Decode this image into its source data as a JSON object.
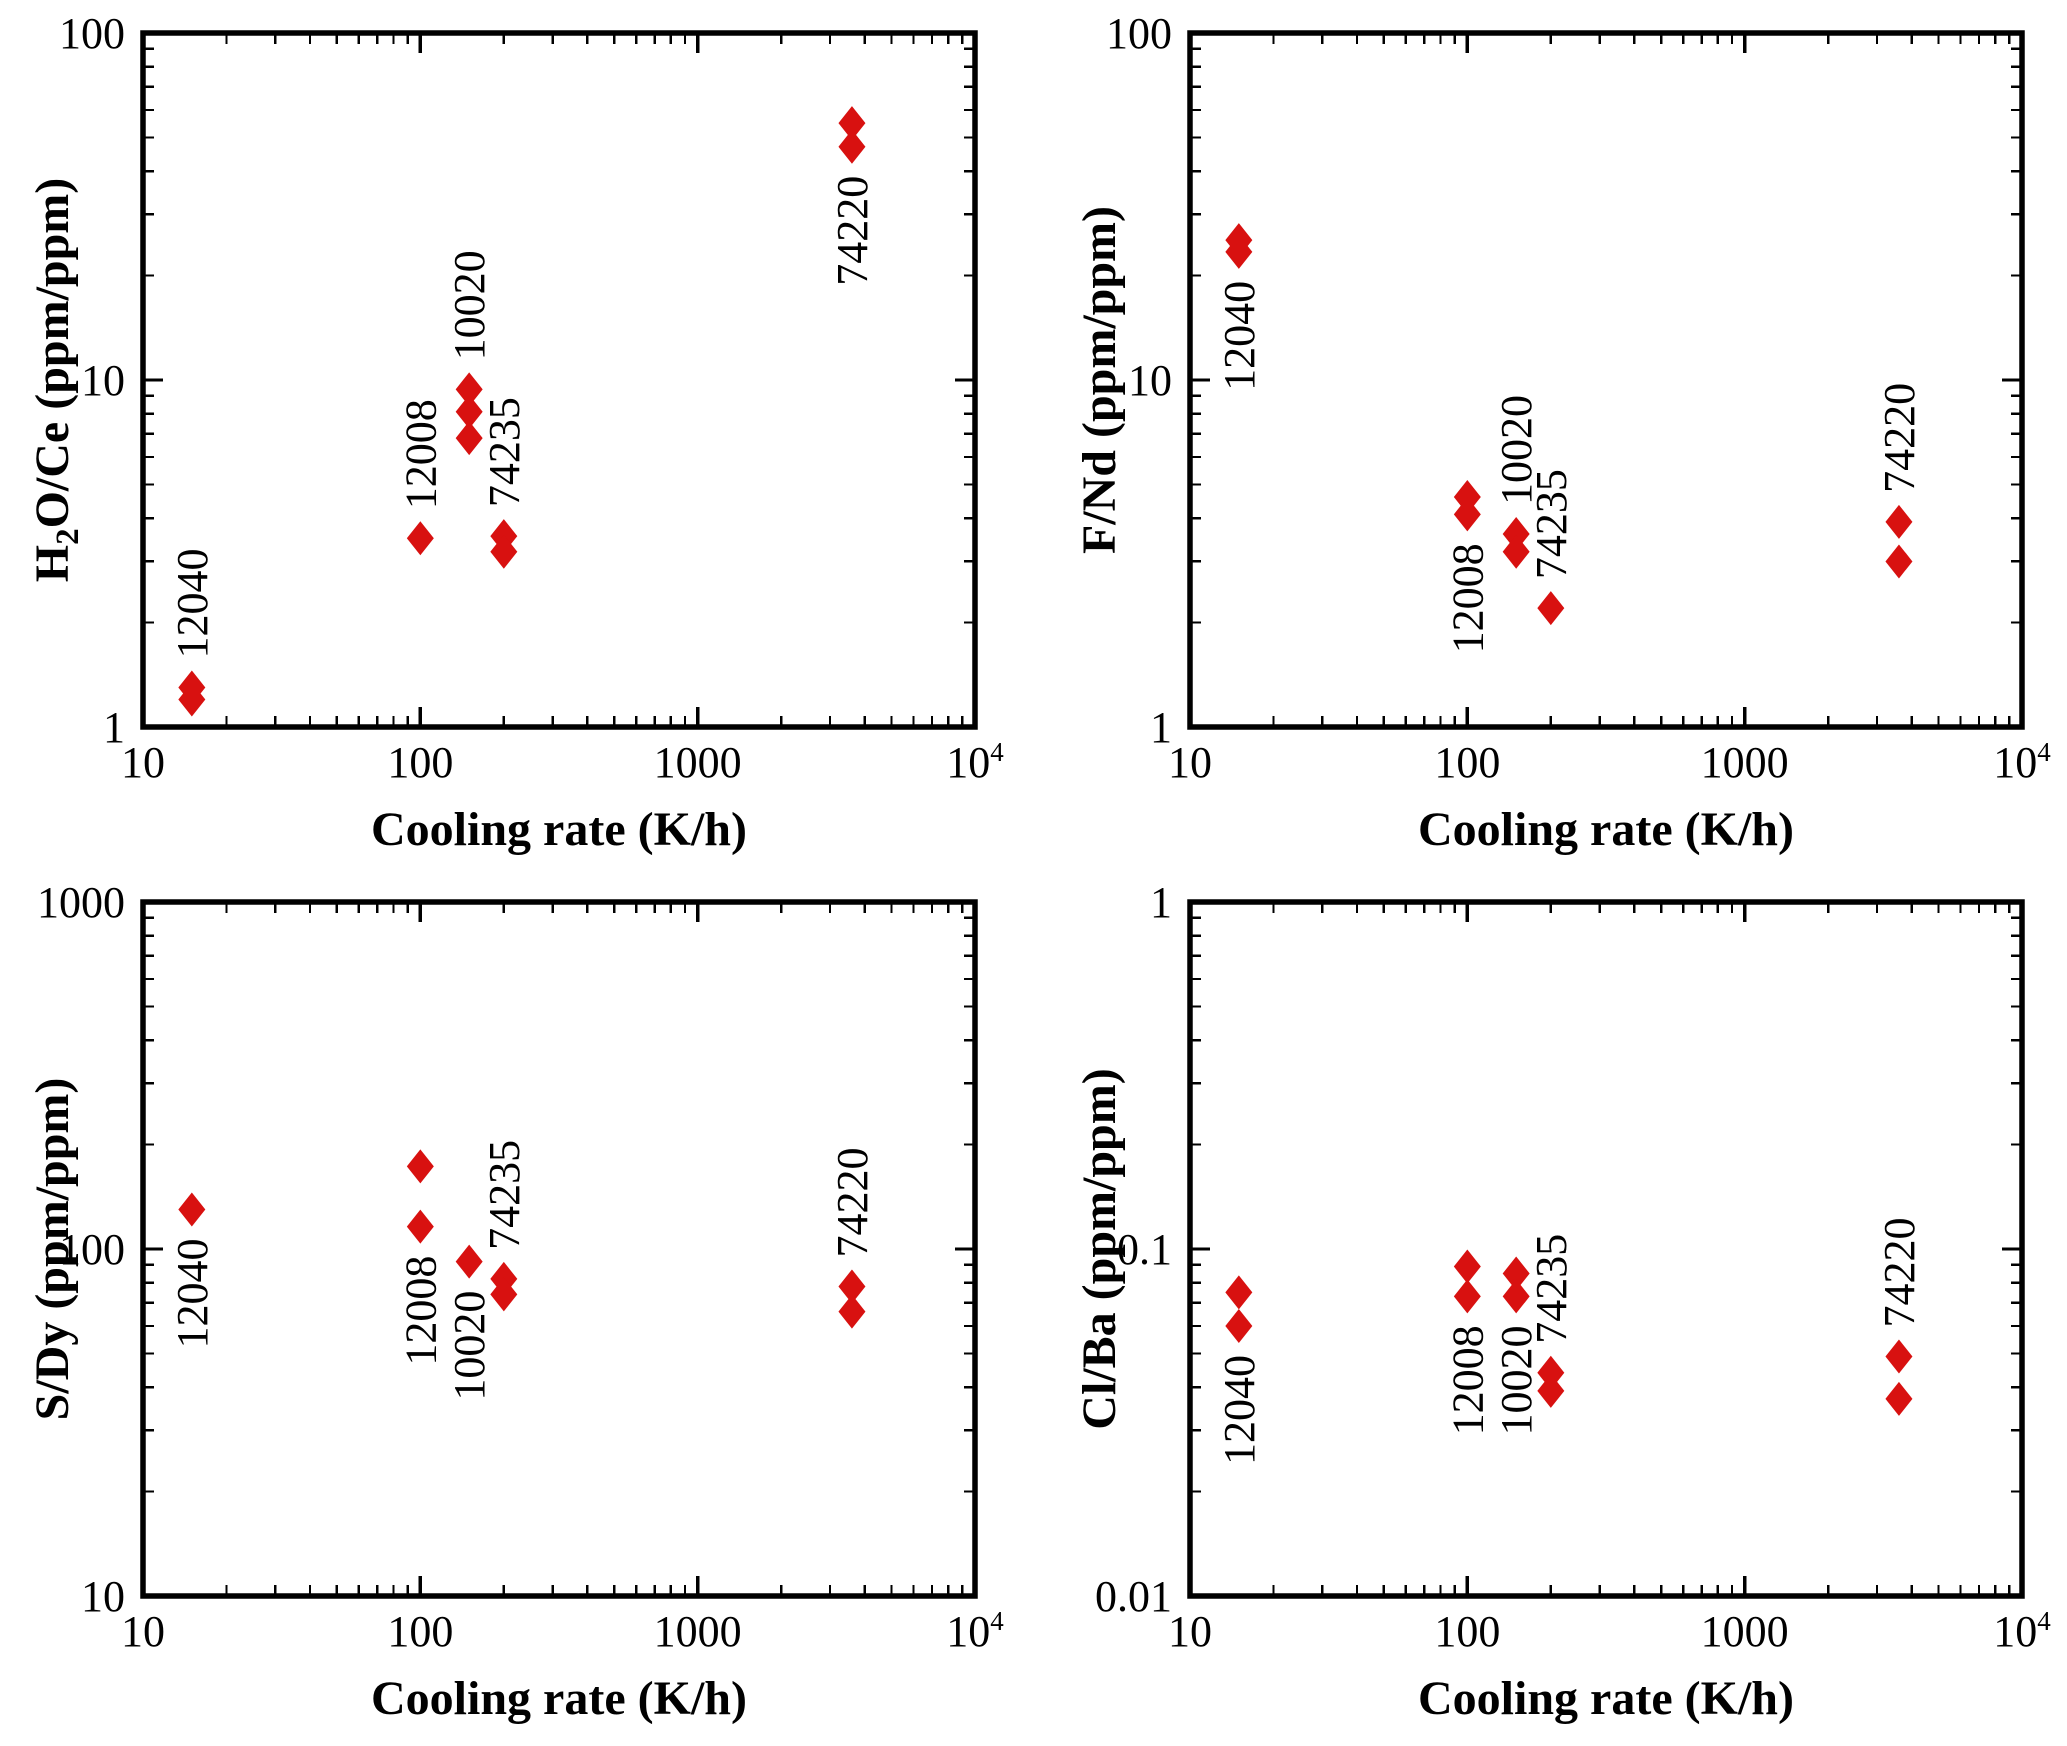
{
  "figure": {
    "background": "#ffffff",
    "axis_color": "#000000",
    "marker_color": "#d81110",
    "marker_shape": "diamond",
    "xlabel": "Cooling rate (K/h)"
  },
  "chart_data": [
    {
      "type": "scatter",
      "id": "h2o-ce",
      "panel": "top-left",
      "xscale": "log",
      "yscale": "log",
      "xlim": [
        10,
        10000
      ],
      "ylim": [
        1,
        100
      ],
      "xlabel": "Cooling rate (K/h)",
      "ylabel_parts": [
        {
          "text": "H",
          "style": "normal"
        },
        {
          "text": "2",
          "style": "sub"
        },
        {
          "text": "O/Ce (ppm/ppm)",
          "style": "normal"
        }
      ],
      "x_ticks": [
        {
          "value": 10,
          "label": "10"
        },
        {
          "value": 100,
          "label": "100"
        },
        {
          "value": 1000,
          "label": "1000"
        },
        {
          "value": 10000,
          "label": "10",
          "sup": "4"
        }
      ],
      "y_ticks": [
        {
          "value": 1,
          "label": "1"
        },
        {
          "value": 10,
          "label": "10"
        },
        {
          "value": 100,
          "label": "100"
        }
      ],
      "series": [
        {
          "name": "12040",
          "x": 15,
          "y": [
            1.3,
            1.2
          ],
          "label_side": "above"
        },
        {
          "name": "12008",
          "x": 100,
          "y": [
            3.5
          ],
          "label_side": "above"
        },
        {
          "name": "10020",
          "x": 150,
          "y": [
            9.4,
            8.1,
            6.8
          ],
          "label_side": "above"
        },
        {
          "name": "74235",
          "x": 200,
          "y": [
            3.55,
            3.2
          ],
          "label_side": "above"
        },
        {
          "name": "74220",
          "x": 3600,
          "y": [
            55,
            47
          ],
          "label_side": "below"
        }
      ]
    },
    {
      "type": "scatter",
      "id": "f-nd",
      "panel": "top-right",
      "xscale": "log",
      "yscale": "log",
      "xlim": [
        10,
        10000
      ],
      "ylim": [
        1,
        100
      ],
      "xlabel": "Cooling rate (K/h)",
      "ylabel_parts": [
        {
          "text": "F/Nd (ppm/ppm)",
          "style": "normal"
        }
      ],
      "x_ticks": [
        {
          "value": 10,
          "label": "10"
        },
        {
          "value": 100,
          "label": "100"
        },
        {
          "value": 1000,
          "label": "1000"
        },
        {
          "value": 10000,
          "label": "10",
          "sup": "4"
        }
      ],
      "y_ticks": [
        {
          "value": 1,
          "label": "1"
        },
        {
          "value": 10,
          "label": "10"
        },
        {
          "value": 100,
          "label": "100"
        }
      ],
      "series": [
        {
          "name": "12040",
          "x": 15,
          "y": [
            25.3,
            23.4
          ],
          "label_side": "below"
        },
        {
          "name": "12008",
          "x": 100,
          "y": [
            4.6,
            4.1
          ],
          "label_side": "below"
        },
        {
          "name": "10020",
          "x": 150,
          "y": [
            3.6,
            3.2
          ],
          "label_side": "above"
        },
        {
          "name": "74235",
          "x": 200,
          "y": [
            2.2
          ],
          "label_side": "above"
        },
        {
          "name": "74220",
          "x": 3600,
          "y": [
            3.9,
            3.0
          ],
          "label_side": "above"
        }
      ]
    },
    {
      "type": "scatter",
      "id": "s-dy",
      "panel": "bottom-left",
      "xscale": "log",
      "yscale": "log",
      "xlim": [
        10,
        10000
      ],
      "ylim": [
        10,
        1000
      ],
      "xlabel": "Cooling rate (K/h)",
      "ylabel_parts": [
        {
          "text": "S/Dy (ppm/ppm)",
          "style": "normal"
        }
      ],
      "x_ticks": [
        {
          "value": 10,
          "label": "10"
        },
        {
          "value": 100,
          "label": "100"
        },
        {
          "value": 1000,
          "label": "1000"
        },
        {
          "value": 10000,
          "label": "10",
          "sup": "4"
        }
      ],
      "y_ticks": [
        {
          "value": 10,
          "label": "10"
        },
        {
          "value": 100,
          "label": "100"
        },
        {
          "value": 1000,
          "label": "1000"
        }
      ],
      "series": [
        {
          "name": "12040",
          "x": 15,
          "y": [
            130
          ],
          "label_side": "below"
        },
        {
          "name": "12008",
          "x": 100,
          "y": [
            173,
            116
          ],
          "label_side": "below"
        },
        {
          "name": "10020",
          "x": 150,
          "y": [
            92
          ],
          "label_side": "below"
        },
        {
          "name": "74235",
          "x": 200,
          "y": [
            82,
            74
          ],
          "label_side": "above"
        },
        {
          "name": "74220",
          "x": 3600,
          "y": [
            78,
            66
          ],
          "label_side": "above"
        }
      ]
    },
    {
      "type": "scatter",
      "id": "cl-ba",
      "panel": "bottom-right",
      "xscale": "log",
      "yscale": "log",
      "xlim": [
        10,
        10000
      ],
      "ylim": [
        0.01,
        1
      ],
      "xlabel": "Cooling rate (K/h)",
      "ylabel_parts": [
        {
          "text": "Cl/Ba (ppm/ppm)",
          "style": "normal"
        }
      ],
      "x_ticks": [
        {
          "value": 10,
          "label": "10"
        },
        {
          "value": 100,
          "label": "100"
        },
        {
          "value": 1000,
          "label": "1000"
        },
        {
          "value": 10000,
          "label": "10",
          "sup": "4"
        }
      ],
      "y_ticks": [
        {
          "value": 0.01,
          "label": "0.01"
        },
        {
          "value": 0.1,
          "label": "0.1"
        },
        {
          "value": 1,
          "label": "1"
        }
      ],
      "series": [
        {
          "name": "12040",
          "x": 15,
          "y": [
            0.075,
            0.06
          ],
          "label_side": "below"
        },
        {
          "name": "12008",
          "x": 100,
          "y": [
            0.089,
            0.073
          ],
          "label_side": "below"
        },
        {
          "name": "10020",
          "x": 150,
          "y": [
            0.085,
            0.073
          ],
          "label_side": "below"
        },
        {
          "name": "74235",
          "x": 200,
          "y": [
            0.044,
            0.039
          ],
          "label_side": "above"
        },
        {
          "name": "74220",
          "x": 3600,
          "y": [
            0.049,
            0.037
          ],
          "label_side": "above"
        }
      ]
    }
  ]
}
